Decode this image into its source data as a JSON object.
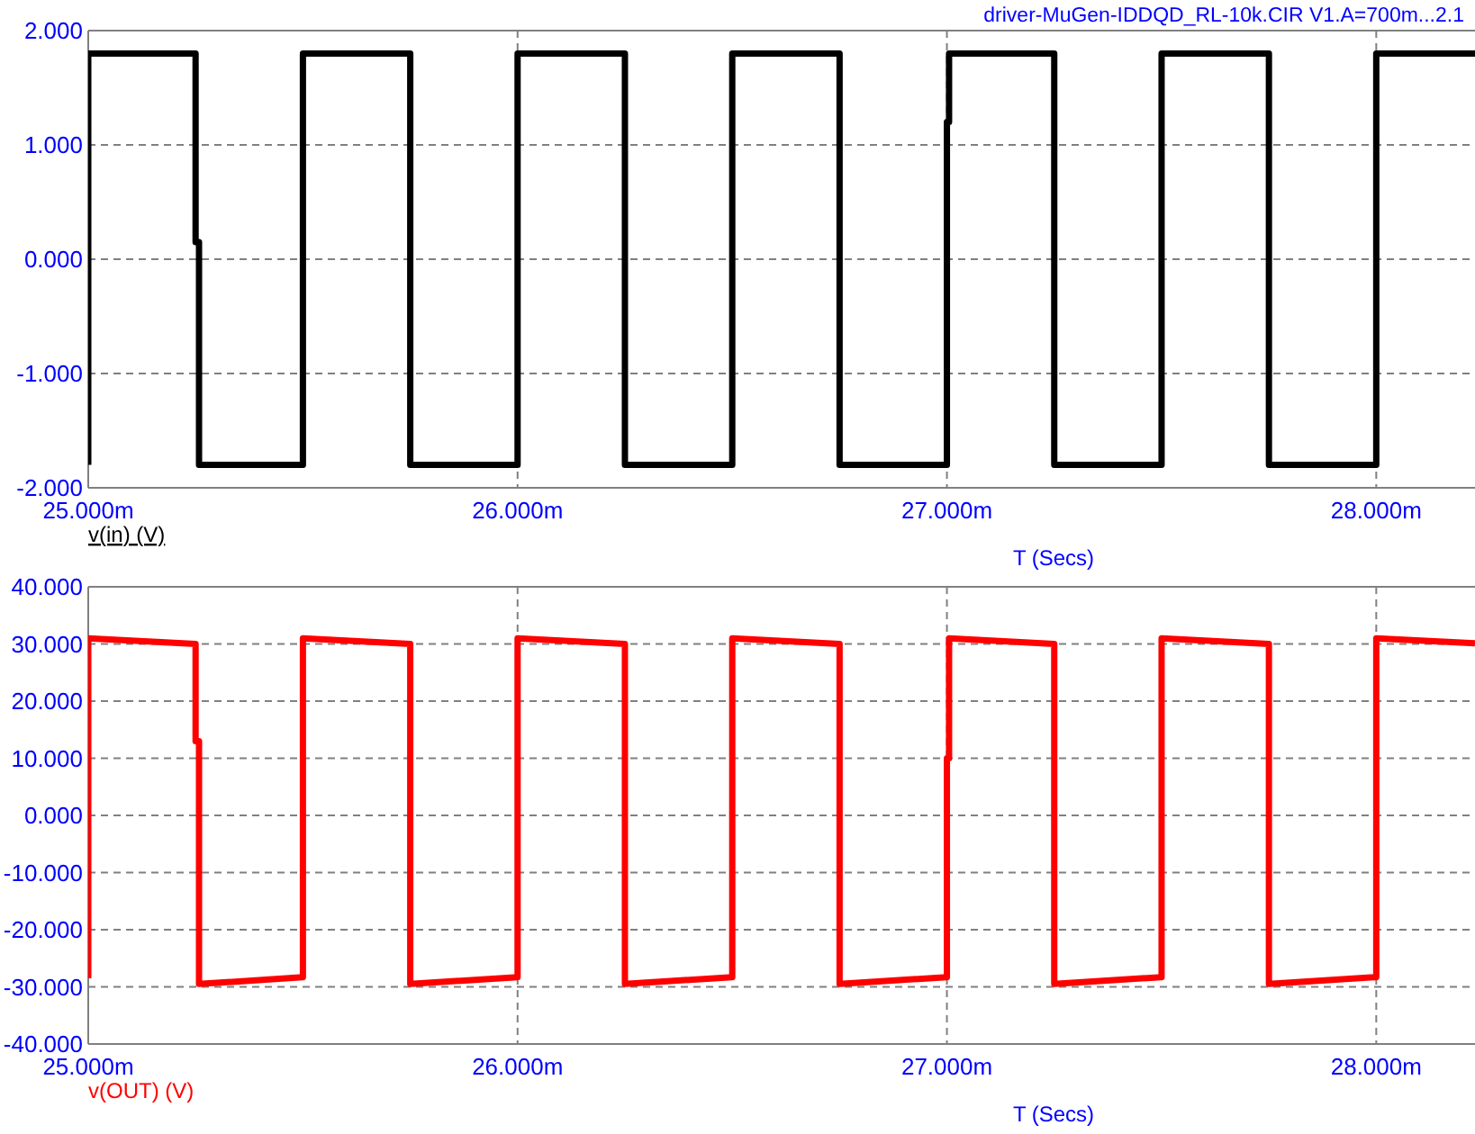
{
  "chart_data": [
    {
      "type": "line",
      "title": "driver-MuGen-IDDQD_RL-10k.CIR V1.A=700m...2.1",
      "xlabel": "T (Secs)",
      "xlim": [
        25,
        28.23
      ],
      "ylim": [
        -2,
        2
      ],
      "xticks": [
        {
          "value": 25,
          "label": "25.000m"
        },
        {
          "value": 26,
          "label": "26.000m"
        },
        {
          "value": 27,
          "label": "27.000m"
        },
        {
          "value": 28,
          "label": "28.000m"
        }
      ],
      "yticks": [
        {
          "value": -2,
          "label": "-2.000"
        },
        {
          "value": -1,
          "label": "-1.000"
        },
        {
          "value": 0,
          "label": "0.000"
        },
        {
          "value": 1,
          "label": "1.000"
        },
        {
          "value": 2,
          "label": "2.000"
        }
      ],
      "grid": true,
      "marker": "none",
      "line_style": "solid",
      "series": [
        {
          "name": "v(in) (V)",
          "color": "#000000",
          "x": [
            25,
            25,
            25.25,
            25.25,
            25.258,
            25.258,
            25.5,
            25.5,
            25.75,
            25.75,
            26,
            26,
            26.25,
            26.25,
            26.5,
            26.5,
            26.75,
            26.75,
            27,
            27,
            27.005,
            27.005,
            27.25,
            27.25,
            27.5,
            27.5,
            27.75,
            27.75,
            28,
            28,
            28.23
          ],
          "values": [
            -1.8,
            1.8,
            1.8,
            0.15,
            0.15,
            -1.8,
            -1.8,
            1.8,
            1.8,
            -1.8,
            -1.8,
            1.8,
            1.8,
            -1.8,
            -1.8,
            1.8,
            1.8,
            -1.8,
            -1.8,
            1.2,
            1.2,
            1.8,
            1.8,
            -1.8,
            -1.8,
            1.8,
            1.8,
            -1.8,
            -1.8,
            1.8,
            1.8
          ]
        }
      ]
    },
    {
      "type": "line",
      "xlabel": "T (Secs)",
      "xlim": [
        25,
        28.23
      ],
      "ylim": [
        -40,
        40
      ],
      "xticks": [
        {
          "value": 25,
          "label": "25.000m"
        },
        {
          "value": 26,
          "label": "26.000m"
        },
        {
          "value": 27,
          "label": "27.000m"
        },
        {
          "value": 28,
          "label": "28.000m"
        }
      ],
      "yticks": [
        {
          "value": -40,
          "label": "-40.000"
        },
        {
          "value": -30,
          "label": "-30.000"
        },
        {
          "value": -20,
          "label": "-20.000"
        },
        {
          "value": -10,
          "label": "-10.000"
        },
        {
          "value": 0,
          "label": "0.000"
        },
        {
          "value": 10,
          "label": "10.000"
        },
        {
          "value": 20,
          "label": "20.000"
        },
        {
          "value": 30,
          "label": "30.000"
        },
        {
          "value": 40,
          "label": "40.000"
        }
      ],
      "grid": true,
      "marker": "none",
      "line_style": "solid",
      "series": [
        {
          "name": "v(OUT) (V)",
          "color": "#ff0000",
          "x": [
            25,
            25,
            25.25,
            25.25,
            25.258,
            25.258,
            25.5,
            25.5,
            25.75,
            25.75,
            26,
            26,
            26.25,
            26.25,
            26.5,
            26.5,
            26.75,
            26.75,
            27,
            27,
            27.005,
            27.005,
            27.25,
            27.25,
            27.5,
            27.5,
            27.75,
            27.75,
            28,
            28,
            28.23
          ],
          "values": [
            -28.5,
            31,
            30,
            13,
            13,
            -29.5,
            -28.3,
            31,
            30,
            -29.5,
            -28.3,
            31,
            30,
            -29.5,
            -28.3,
            31,
            30,
            -29.5,
            -28.3,
            10,
            10,
            31,
            30,
            -29.5,
            -28.3,
            31,
            30,
            -29.5,
            -28.3,
            31,
            30.1
          ]
        }
      ]
    }
  ]
}
